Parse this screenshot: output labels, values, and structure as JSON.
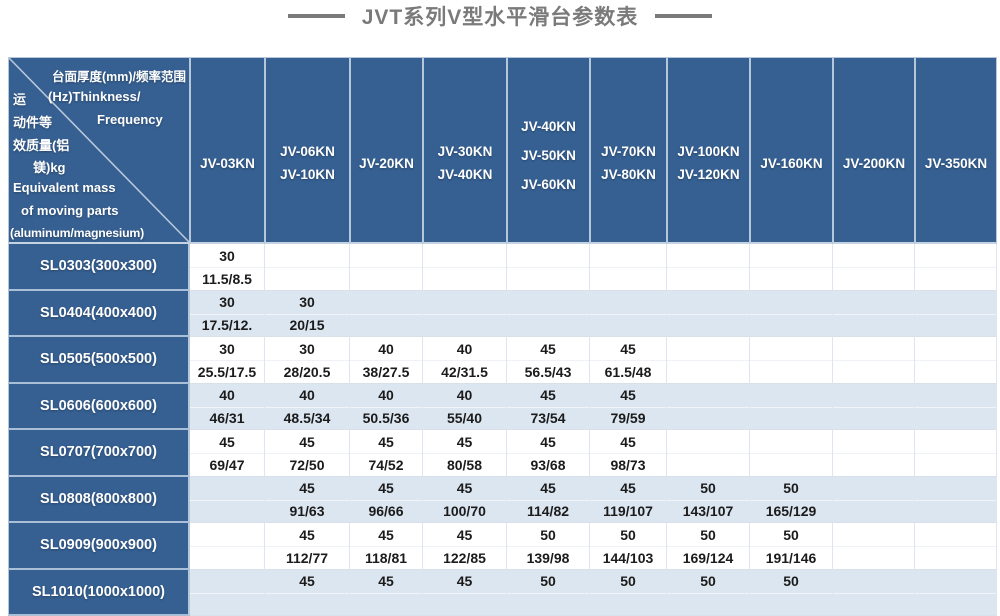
{
  "title": "JVT系列V型水平滑台参数表",
  "colors": {
    "header_blue": "#366092",
    "stripe_blue": "#dce6f1",
    "title_gray": "#7a7a7a",
    "grid_line": "#dfe5ee",
    "header_divider": "#b7c7da",
    "data_text": "#1b1b1b"
  },
  "chart_data": {
    "type": "table",
    "title": "JVT系列V型水平滑台参数表",
    "corner_header": {
      "line1": "台面厚度(mm)/频率范围",
      "line2_cn": "运",
      "line2_en": "(Hz)Thinkness/",
      "line3_cn": "动件等",
      "line3_en": "Frequency",
      "line4": "效质量(铝",
      "line5": "镁)kg",
      "line6": "Equivalent mass",
      "line7": "of moving parts",
      "line8": "(aluminum/magnesium)"
    },
    "cell_value_format": "top: thickness (mm), bottom: equivalent mass frequency (aluminum/magnesium)",
    "columns": [
      [
        "JV-03KN"
      ],
      [
        "JV-06KN",
        "JV-10KN"
      ],
      [
        "JV-20KN"
      ],
      [
        "JV-30KN",
        "JV-40KN"
      ],
      [
        "JV-40KN",
        "JV-50KN",
        "JV-60KN"
      ],
      [
        "JV-70KN",
        "JV-80KN"
      ],
      [
        "JV-100KN",
        "JV-120KN"
      ],
      [
        "JV-160KN"
      ],
      [
        "JV-200KN"
      ],
      [
        "JV-350KN"
      ]
    ],
    "rows": [
      {
        "label": "SL0303(300x300)",
        "cells": [
          [
            "30",
            "11.5/8.5"
          ],
          [
            "",
            ""
          ],
          [
            "",
            ""
          ],
          [
            "",
            ""
          ],
          [
            "",
            ""
          ],
          [
            "",
            ""
          ],
          [
            "",
            ""
          ],
          [
            "",
            ""
          ],
          [
            "",
            ""
          ],
          [
            "",
            ""
          ]
        ]
      },
      {
        "label": "SL0404(400x400)",
        "cells": [
          [
            "30",
            "17.5/12."
          ],
          [
            "30",
            "20/15"
          ],
          [
            "",
            ""
          ],
          [
            "",
            ""
          ],
          [
            "",
            ""
          ],
          [
            "",
            ""
          ],
          [
            "",
            ""
          ],
          [
            "",
            ""
          ],
          [
            "",
            ""
          ],
          [
            "",
            ""
          ]
        ]
      },
      {
        "label": "SL0505(500x500)",
        "cells": [
          [
            "30",
            "25.5/17.5"
          ],
          [
            "30",
            "28/20.5"
          ],
          [
            "40",
            "38/27.5"
          ],
          [
            "40",
            "42/31.5"
          ],
          [
            "45",
            "56.5/43"
          ],
          [
            "45",
            "61.5/48"
          ],
          [
            "",
            ""
          ],
          [
            "",
            ""
          ],
          [
            "",
            ""
          ],
          [
            "",
            ""
          ]
        ]
      },
      {
        "label": "SL0606(600x600)",
        "cells": [
          [
            "40",
            "46/31"
          ],
          [
            "40",
            "48.5/34"
          ],
          [
            "40",
            "50.5/36"
          ],
          [
            "40",
            "55/40"
          ],
          [
            "45",
            "73/54"
          ],
          [
            "45",
            "79/59"
          ],
          [
            "",
            ""
          ],
          [
            "",
            ""
          ],
          [
            "",
            ""
          ],
          [
            "",
            ""
          ]
        ]
      },
      {
        "label": "SL0707(700x700)",
        "cells": [
          [
            "45",
            "69/47"
          ],
          [
            "45",
            "72/50"
          ],
          [
            "45",
            "74/52"
          ],
          [
            "45",
            "80/58"
          ],
          [
            "45",
            "93/68"
          ],
          [
            "45",
            "98/73"
          ],
          [
            "",
            ""
          ],
          [
            "",
            ""
          ],
          [
            "",
            ""
          ],
          [
            "",
            ""
          ]
        ]
      },
      {
        "label": "SL0808(800x800)",
        "cells": [
          [
            "",
            ""
          ],
          [
            "45",
            "91/63"
          ],
          [
            "45",
            "96/66"
          ],
          [
            "45",
            "100/70"
          ],
          [
            "45",
            "114/82"
          ],
          [
            "45",
            "119/107"
          ],
          [
            "50",
            "143/107"
          ],
          [
            "50",
            "165/129"
          ],
          [
            "",
            ""
          ],
          [
            "",
            ""
          ]
        ]
      },
      {
        "label": "SL0909(900x900)",
        "cells": [
          [
            "",
            ""
          ],
          [
            "45",
            "112/77"
          ],
          [
            "45",
            "118/81"
          ],
          [
            "45",
            "122/85"
          ],
          [
            "50",
            "139/98"
          ],
          [
            "50",
            "144/103"
          ],
          [
            "50",
            "169/124"
          ],
          [
            "50",
            "191/146"
          ],
          [
            "",
            ""
          ],
          [
            "",
            ""
          ]
        ]
      },
      {
        "label": "SL1010(1000x1000)",
        "cells": [
          [
            "",
            ""
          ],
          [
            "45",
            ""
          ],
          [
            "45",
            ""
          ],
          [
            "45",
            ""
          ],
          [
            "50",
            ""
          ],
          [
            "50",
            ""
          ],
          [
            "50",
            ""
          ],
          [
            "50",
            ""
          ],
          [
            "",
            ""
          ],
          [
            "",
            ""
          ]
        ]
      }
    ]
  }
}
